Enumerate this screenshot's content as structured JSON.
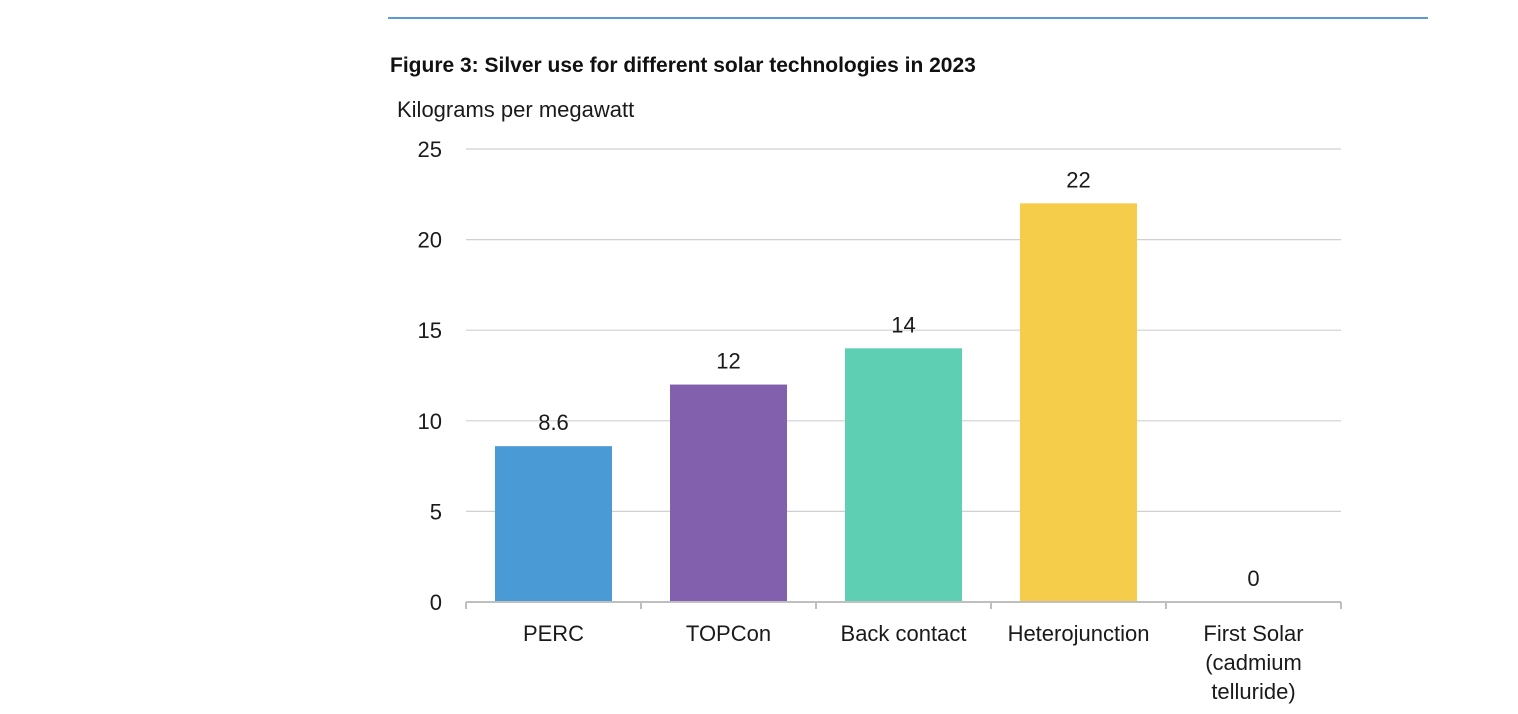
{
  "figure": {
    "title": "Figure 3:  Silver use for different solar technologies in 2023"
  },
  "colors": {
    "rule": "#5b9bd5",
    "grid": "#d0d0d0",
    "axis": "#bfbfbf"
  },
  "chart_data": {
    "type": "bar",
    "title": "Figure 3:  Silver use for different solar technologies in 2023",
    "ylabel": "Kilograms per megawatt",
    "xlabel": "",
    "ylim": [
      0,
      25
    ],
    "yticks": [
      0,
      5,
      10,
      15,
      20,
      25
    ],
    "grid": true,
    "categories": [
      [
        "PERC"
      ],
      [
        "TOPCon"
      ],
      [
        "Back contact"
      ],
      [
        "Heterojunction"
      ],
      [
        "First Solar",
        "(cadmium",
        "telluride)"
      ]
    ],
    "values": [
      8.6,
      12,
      14,
      22,
      0
    ],
    "data_labels": [
      "8.6",
      "12",
      "14",
      "22",
      "0"
    ],
    "bar_colors": [
      "#4a9ad6",
      "#8360ad",
      "#5ecfb3",
      "#f6cc4b",
      "#cccccc"
    ]
  }
}
